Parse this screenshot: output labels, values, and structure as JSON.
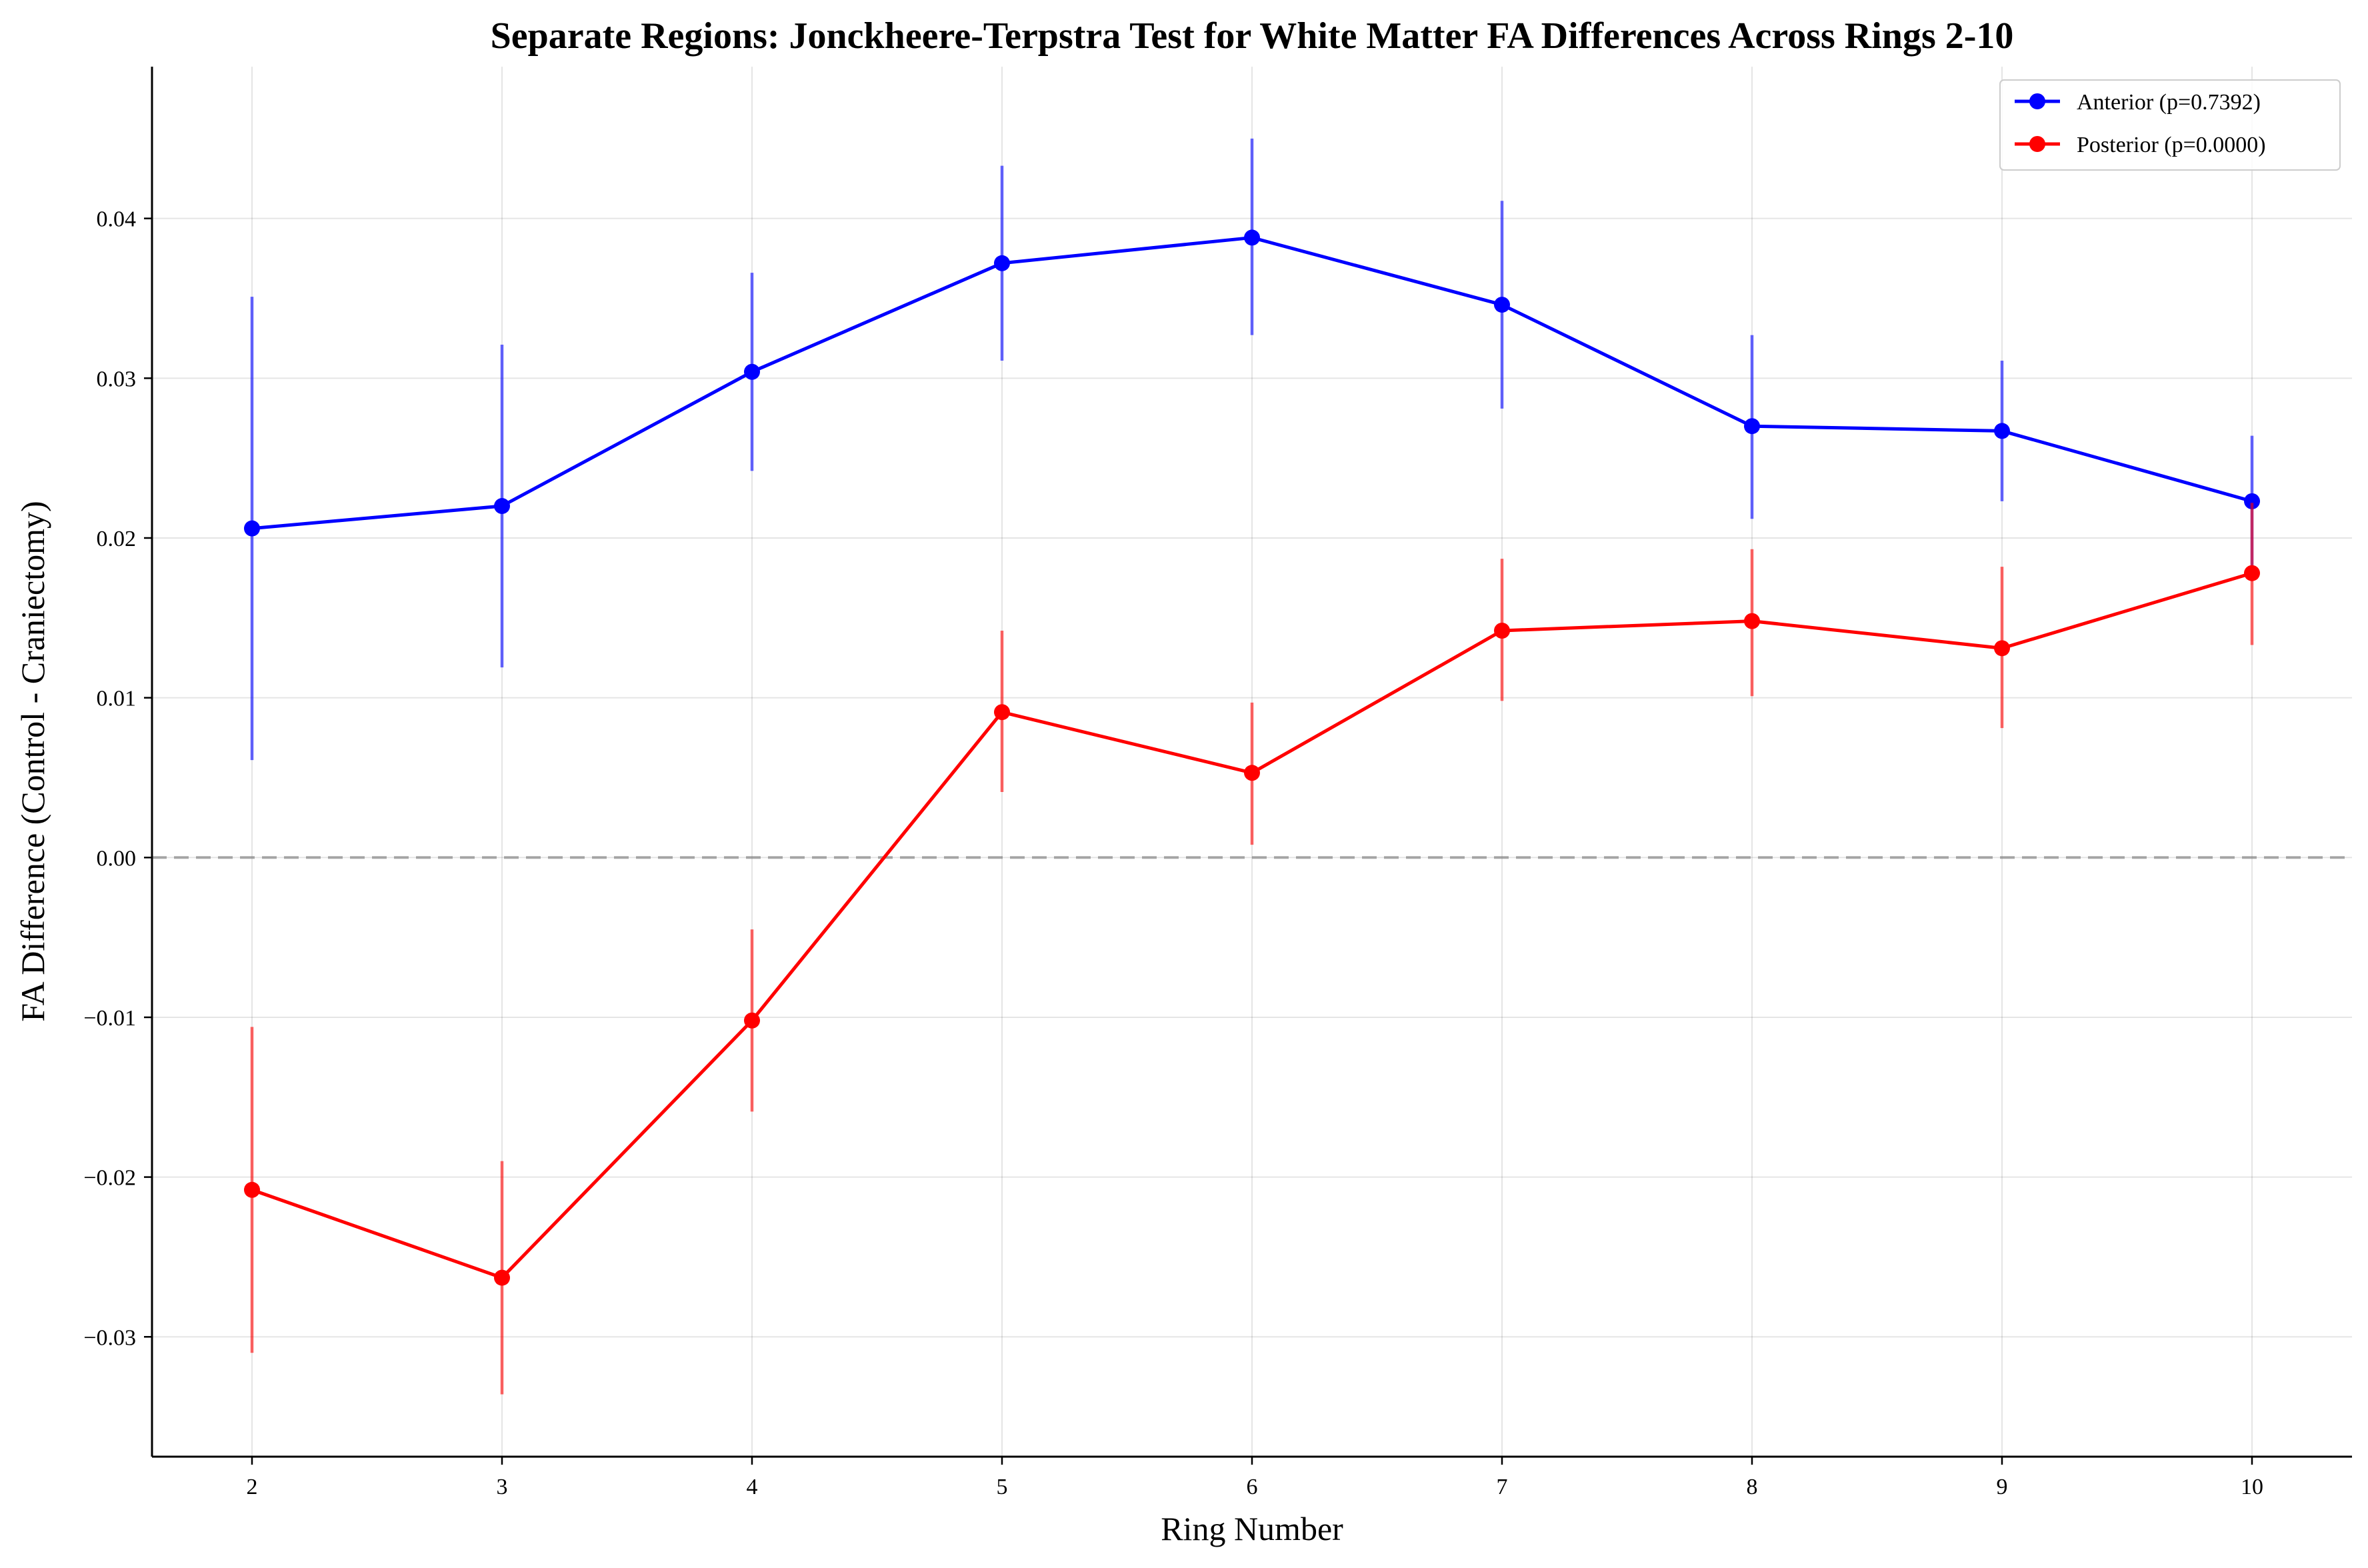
{
  "chart_data": {
    "type": "line",
    "title": "Separate Regions: Jonckheere-Terpstra Test for White Matter FA Differences Across Rings 2-10",
    "xlabel": "Ring Number",
    "ylabel": "FA Difference (Control - Craniectomy)",
    "x": [
      2,
      3,
      4,
      5,
      6,
      7,
      8,
      9,
      10
    ],
    "x_ticks": [
      "2",
      "3",
      "4",
      "5",
      "6",
      "7",
      "8",
      "9",
      "10"
    ],
    "y_ticks": [
      -0.03,
      -0.02,
      -0.01,
      0.0,
      0.01,
      0.02,
      0.03,
      0.04
    ],
    "y_tick_labels": [
      "−0.03",
      "−0.02",
      "−0.01",
      "0.00",
      "0.01",
      "0.02",
      "0.03",
      "0.04"
    ],
    "xlim": [
      1.6,
      10.4
    ],
    "ylim": [
      -0.0375,
      0.0495
    ],
    "grid": true,
    "reference_line": 0.0,
    "legend_position": "top-right",
    "series": [
      {
        "name": "Anterior (p=0.7392)",
        "color": "#0000ff",
        "values": [
          0.0206,
          0.022,
          0.0304,
          0.0372,
          0.0388,
          0.0346,
          0.027,
          0.0267,
          0.0223
        ],
        "error_low": [
          0.0061,
          0.0119,
          0.0242,
          0.0311,
          0.0327,
          0.0281,
          0.0212,
          0.0223,
          0.0181
        ],
        "error_high": [
          0.0351,
          0.0321,
          0.0366,
          0.0433,
          0.045,
          0.0411,
          0.0327,
          0.0311,
          0.0264
        ]
      },
      {
        "name": "Posterior (p=0.0000)",
        "color": "#ff0000",
        "values": [
          -0.0208,
          -0.0263,
          -0.0102,
          0.0091,
          0.0053,
          0.0142,
          0.0148,
          0.0131,
          0.0178
        ],
        "error_low": [
          -0.031,
          -0.0336,
          -0.0159,
          0.0041,
          0.0008,
          0.0098,
          0.0101,
          0.0081,
          0.0133
        ],
        "error_high": [
          -0.0106,
          -0.019,
          -0.0045,
          0.0142,
          0.0097,
          0.0187,
          0.0193,
          0.0182,
          0.0222
        ]
      }
    ]
  }
}
